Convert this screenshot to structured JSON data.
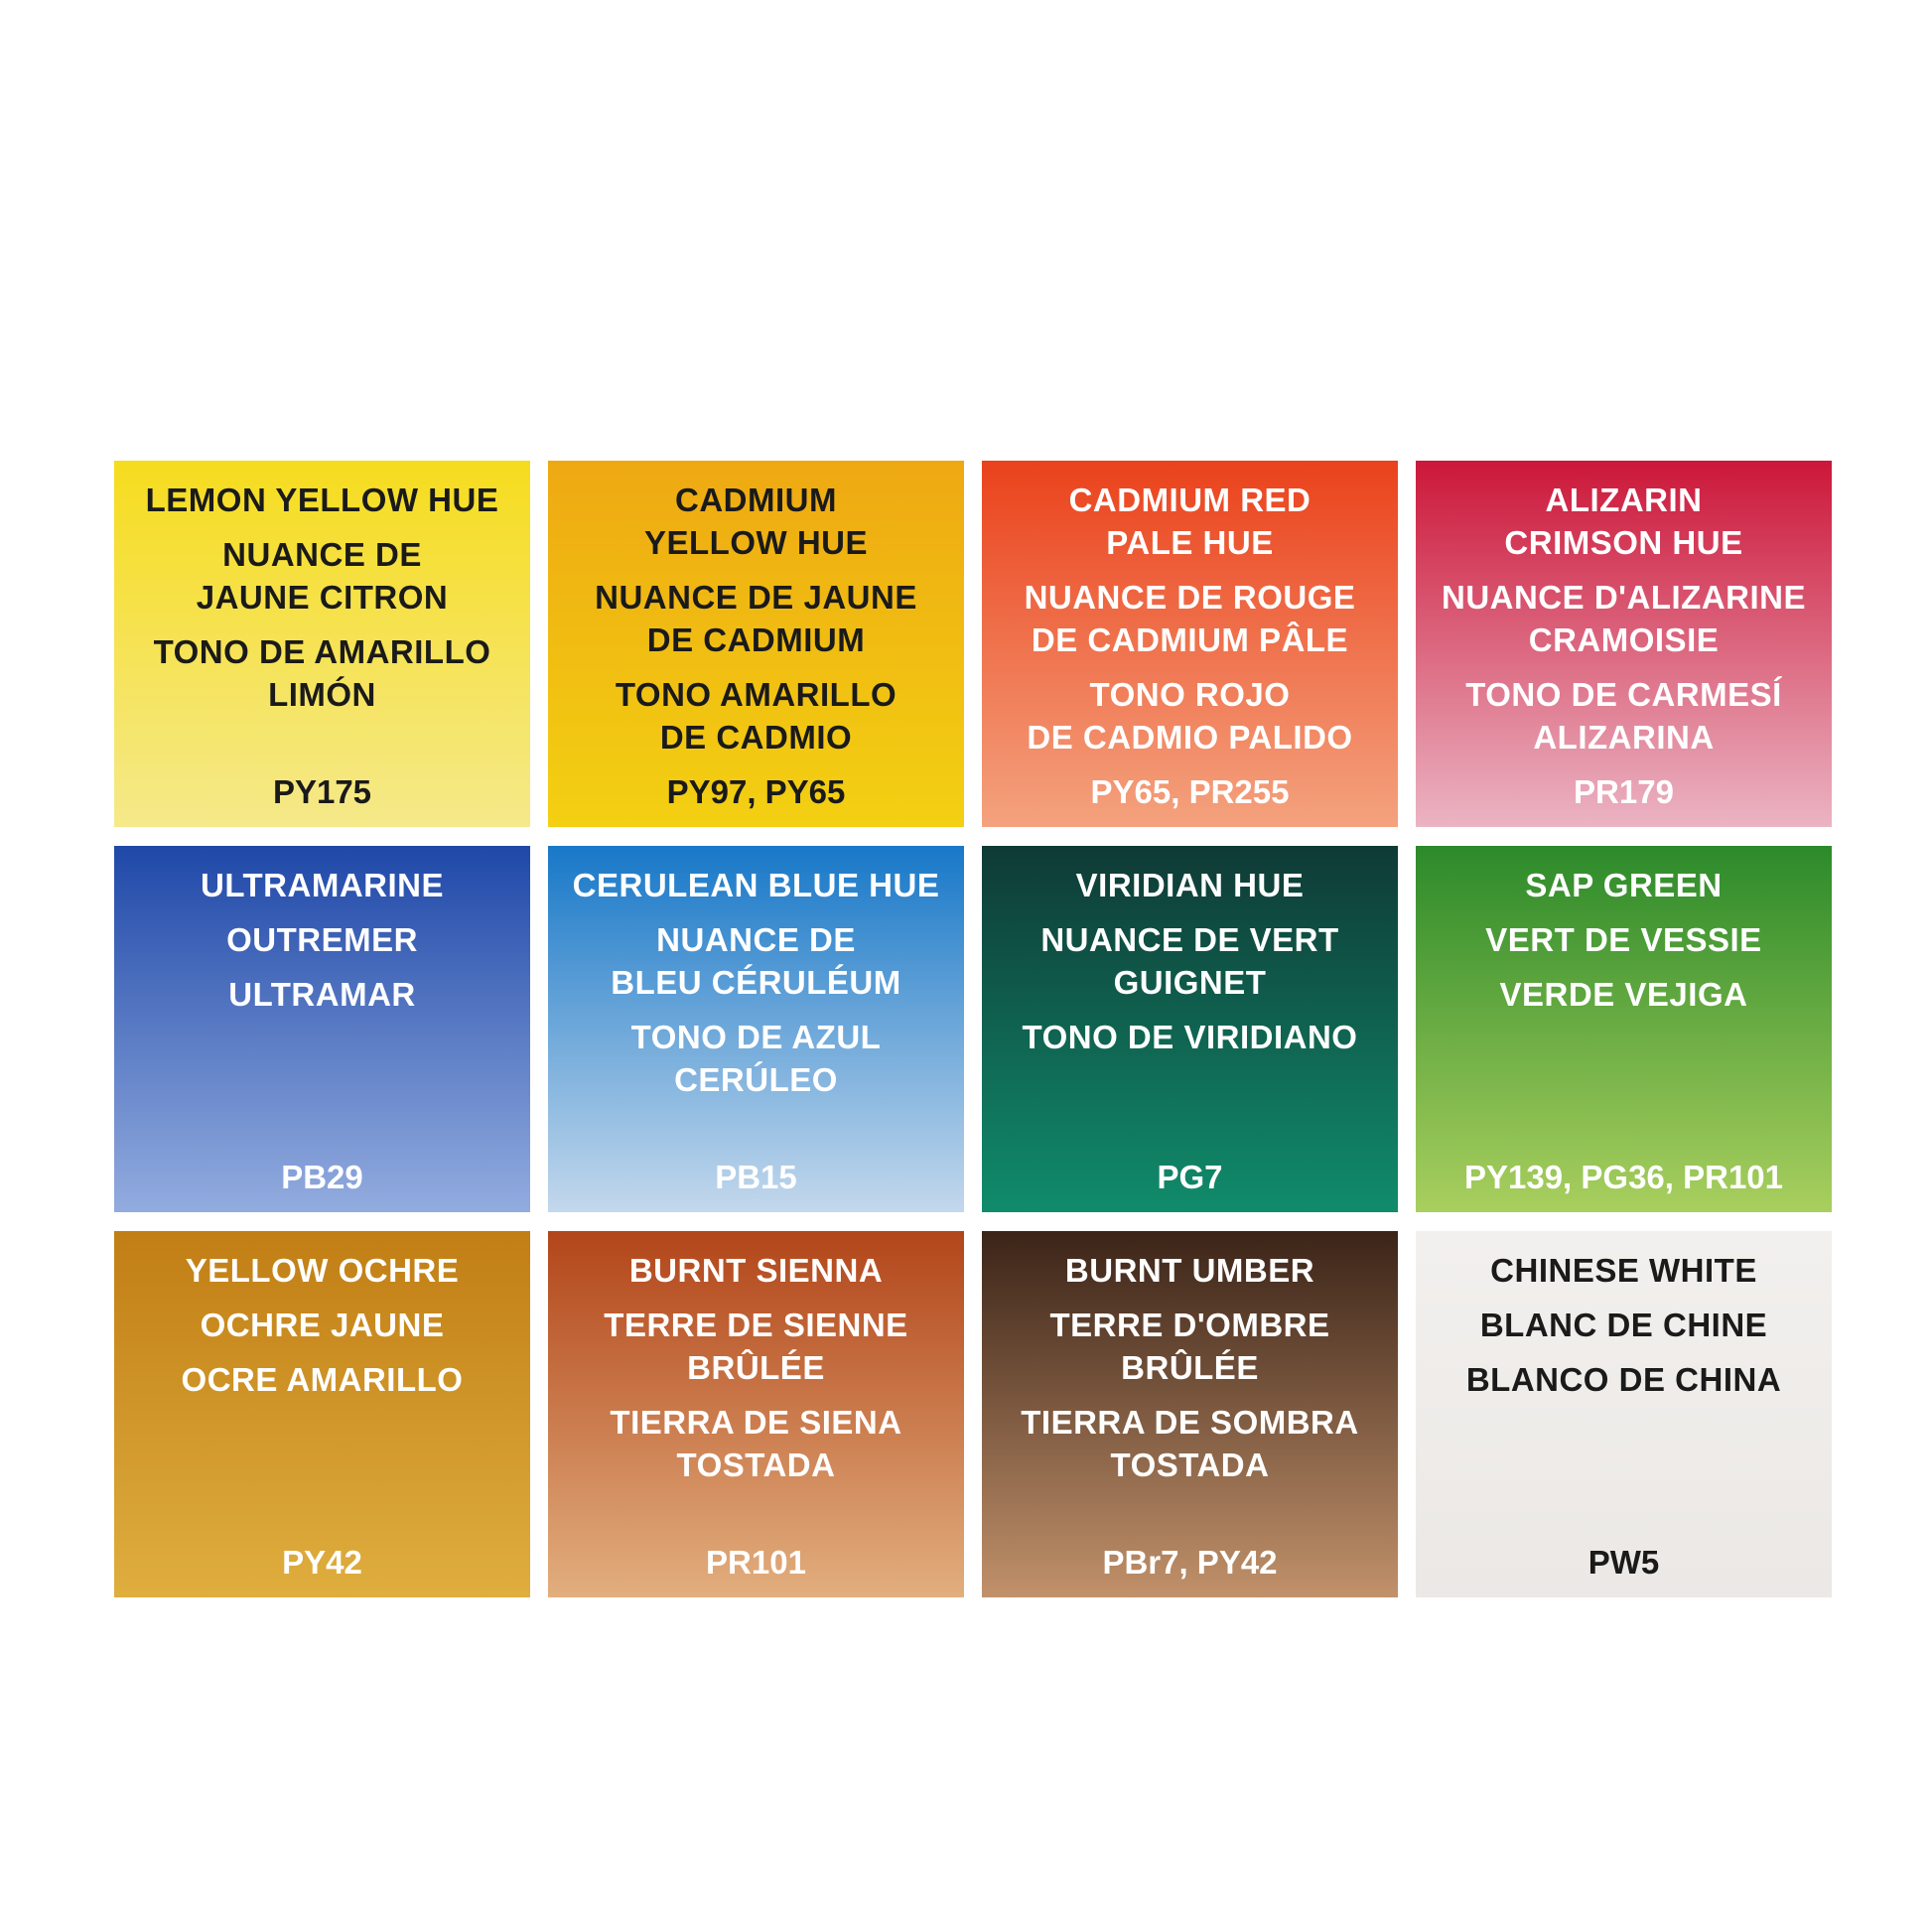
{
  "swatches": [
    {
      "name": [
        "LEMON YELLOW HUE"
      ],
      "fr": [
        "NUANCE DE",
        "JAUNE CITRON"
      ],
      "es": [
        "TONO DE AMARILLO",
        "LIMÓN"
      ],
      "pigment": "PY175",
      "colors": [
        "#f6dc1e",
        "#f5e98a"
      ],
      "text_color": "#1a1a1a"
    },
    {
      "name": [
        "CADMIUM",
        "YELLOW HUE"
      ],
      "fr": [
        "NUANCE DE JAUNE",
        "DE CADMIUM"
      ],
      "es": [
        "TONO AMARILLO",
        "DE CADMIO"
      ],
      "pigment": "PY97, PY65",
      "colors": [
        "#eea912",
        "#f3d012"
      ],
      "text_color": "#1a1a1a"
    },
    {
      "name": [
        "CADMIUM RED",
        "PALE HUE"
      ],
      "fr": [
        "NUANCE DE ROUGE",
        "DE CADMIUM PÂLE"
      ],
      "es": [
        "TONO ROJO",
        "DE CADMIO PALIDO"
      ],
      "pigment": "PY65, PR255",
      "colors": [
        "#ea421c",
        "#f4a27e"
      ],
      "text_color": "#ffffff"
    },
    {
      "name": [
        "ALIZARIN",
        "CRIMSON HUE"
      ],
      "fr": [
        "NUANCE D'ALIZARINE",
        "CRAMOISIE"
      ],
      "es": [
        "TONO DE CARMESÍ",
        "ALIZARINA"
      ],
      "pigment": "PR179",
      "colors": [
        "#cc1739",
        "#ebb4c3"
      ],
      "text_color": "#ffffff"
    },
    {
      "name": [
        "ULTRAMARINE"
      ],
      "fr": [
        "OUTREMER"
      ],
      "es": [
        "ULTRAMAR"
      ],
      "pigment": "PB29",
      "colors": [
        "#1f48a8",
        "#93acdf"
      ],
      "text_color": "#ffffff"
    },
    {
      "name": [
        "CERULEAN BLUE HUE"
      ],
      "fr": [
        "NUANCE DE",
        "BLEU CÉRULÉUM"
      ],
      "es": [
        "TONO DE AZUL",
        "CERÚLEO"
      ],
      "pigment": "PB15",
      "colors": [
        "#1878c8",
        "#c3d8ec"
      ],
      "text_color": "#ffffff"
    },
    {
      "name": [
        "VIRIDIAN HUE"
      ],
      "fr": [
        "NUANCE DE VERT",
        "GUIGNET"
      ],
      "es": [
        "TONO DE VIRIDIANO"
      ],
      "pigment": "PG7",
      "colors": [
        "#0f3a35",
        "#108c6b"
      ],
      "text_color": "#ffffff"
    },
    {
      "name": [
        "SAP GREEN"
      ],
      "fr": [
        "VERT DE VESSIE"
      ],
      "es": [
        "VERDE VEJIGA"
      ],
      "pigment": "PY139, PG36, PR101",
      "colors": [
        "#2c8a2a",
        "#a9cf5e"
      ],
      "text_color": "#ffffff"
    },
    {
      "name": [
        "YELLOW OCHRE"
      ],
      "fr": [
        "OCHRE JAUNE"
      ],
      "es": [
        "OCRE AMARILLO"
      ],
      "pigment": "PY42",
      "colors": [
        "#c17e15",
        "#dfae3e"
      ],
      "text_color": "#ffffff"
    },
    {
      "name": [
        "BURNT SIENNA"
      ],
      "fr": [
        "TERRE DE SIENNE",
        "BRÛLÉE"
      ],
      "es": [
        "TIERRA DE SIENA",
        "TOSTADA"
      ],
      "pigment": "PR101",
      "colors": [
        "#b2461a",
        "#e2ae7e"
      ],
      "text_color": "#ffffff"
    },
    {
      "name": [
        "BURNT UMBER"
      ],
      "fr": [
        "TERRE D'OMBRE",
        "BRÛLÉE"
      ],
      "es": [
        "TIERRA DE SOMBRA",
        "TOSTADA"
      ],
      "pigment": "PBr7, PY42",
      "colors": [
        "#3b2418",
        "#c1916a"
      ],
      "text_color": "#ffffff"
    },
    {
      "name": [
        "CHINESE WHITE"
      ],
      "fr": [
        "BLANC DE CHINE"
      ],
      "es": [
        "BLANCO DE CHINA"
      ],
      "pigment": "PW5",
      "colors": [
        "#f2f0ee",
        "#ebe8e5"
      ],
      "text_color": "#1a1a1a"
    }
  ]
}
